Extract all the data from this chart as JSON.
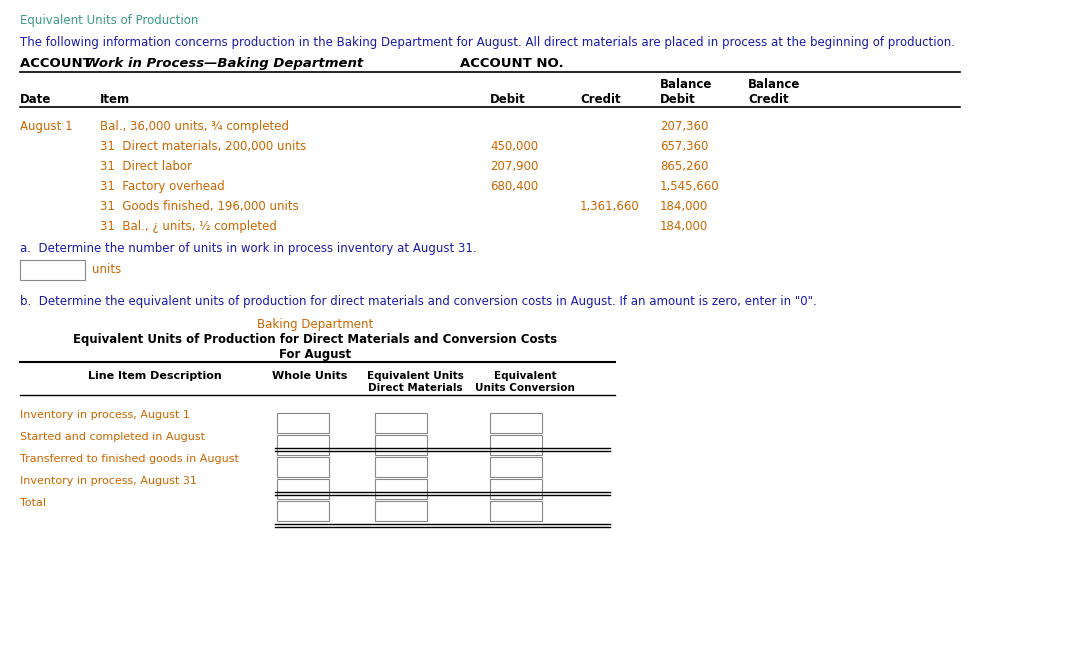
{
  "title": "Equivalent Units of Production",
  "subtitle": "The following information concerns production in the Baking Department for August. All direct materials are placed in process at the beginning of production.",
  "account_bold": "ACCOUNT ",
  "account_italic": "Work in Process—Baking Department",
  "account_no": "ACCOUNT NO.",
  "col_headers_row1": [
    "",
    "",
    "",
    "",
    "Balance",
    "Balance"
  ],
  "col_headers_row2": [
    "Date",
    "Item",
    "Debit",
    "Credit",
    "Debit",
    "Credit"
  ],
  "table_rows": [
    [
      "August 1",
      "Bal., 36,000 units, ¾ completed",
      "",
      "",
      "207,360",
      ""
    ],
    [
      "",
      "31  Direct materials, 200,000 units",
      "450,000",
      "",
      "657,360",
      ""
    ],
    [
      "",
      "31  Direct labor",
      "207,900",
      "",
      "865,260",
      ""
    ],
    [
      "",
      "31  Factory overhead",
      "680,400",
      "",
      "1,545,660",
      ""
    ],
    [
      "",
      "31  Goods finished, 196,000 units",
      "",
      "1,361,660",
      "184,000",
      ""
    ],
    [
      "",
      "31  Bal., ¿ units, ½ completed",
      "",
      "",
      "184,000",
      ""
    ]
  ],
  "part_a_text": "a.  Determine the number of units in work in process inventory at August 31.",
  "part_a_units": "units",
  "part_b_text": "b.  Determine the equivalent units of production for direct materials and conversion costs in August. If an amount is zero, enter in \"0\".",
  "dept_title": "Baking Department",
  "t2_title1": "Equivalent Units of Production for Direct Materials and Conversion Costs",
  "t2_title2": "For August",
  "t2_col1": "Line Item Description",
  "t2_col2": "Whole Units",
  "t2_col3a": "Equivalent Units",
  "t2_col3b": "Direct Materials",
  "t2_col4a": "Equivalent",
  "t2_col4b": "Units Conversion",
  "t2_rows": [
    "Inventory in process, August 1",
    "Started and completed in August",
    "Transferred to finished goods in August",
    "Inventory in process, August 31",
    "Total"
  ],
  "title_color": "#3a9a8a",
  "subtitle_color": "#1a1aaa",
  "row_color": "#cc6600",
  "black": "#000000",
  "white": "#ffffff",
  "gray_box": "#aaaaaa"
}
